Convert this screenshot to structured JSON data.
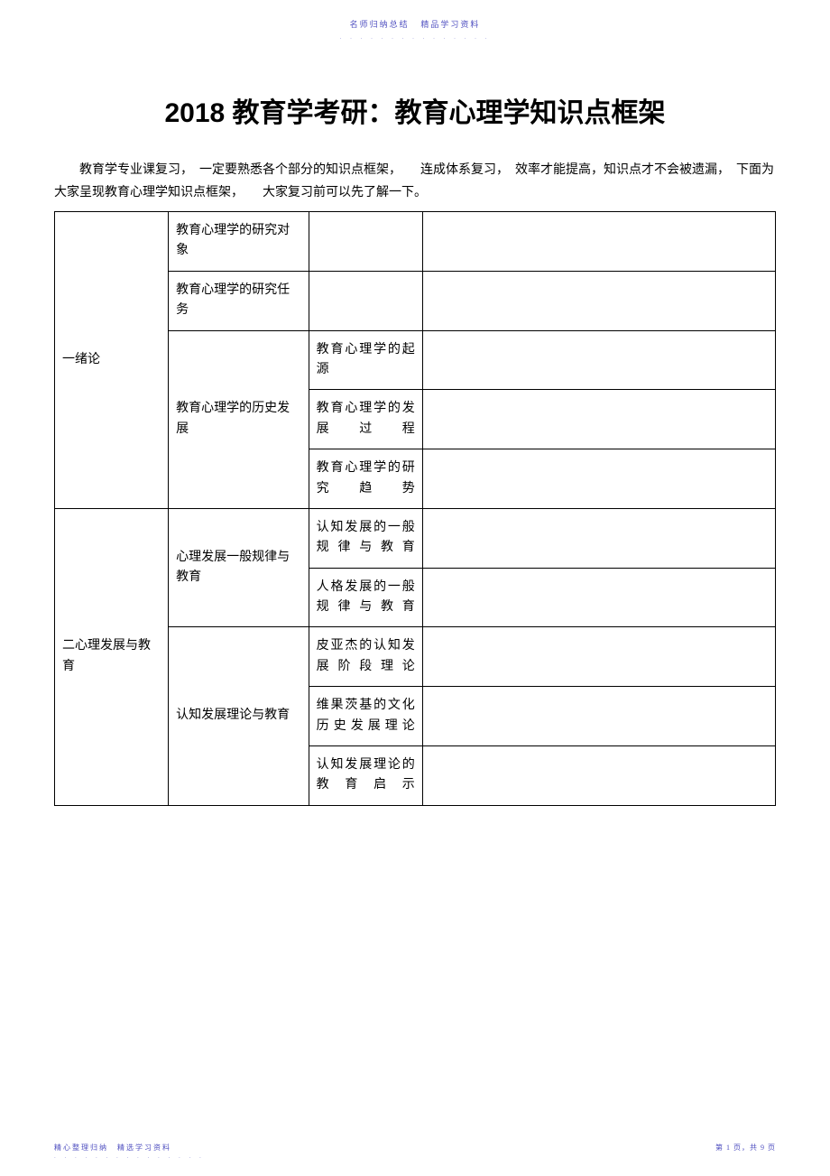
{
  "header": {
    "note_left": "名师归纳总结",
    "note_right": "精品学习资料",
    "dots": ". . . . . . . . . . . . . . ."
  },
  "title": "2018 教育学考研：教育心理学知识点框架",
  "intro": "教育学专业课复习，　一定要熟悉各个部分的知识点框架，　　连成体系复习，　效率才能提高，知识点才不会被遗漏，　下面为大家呈现教育心理学知识点框架，　　大家复习前可以先了解一下。",
  "sections": [
    {
      "col1": "一绪论",
      "rows": [
        {
          "col2": "教育心理学的研究对象",
          "subs": [
            {
              "col3": "",
              "col4": ""
            }
          ]
        },
        {
          "col2": "教育心理学的研究任务",
          "subs": [
            {
              "col3": "",
              "col4": ""
            }
          ]
        },
        {
          "col2": "教育心理学的历史发展",
          "subs": [
            {
              "col3": "教育心理学的起源",
              "col4": ""
            },
            {
              "col3": "教育心理学的发展过程",
              "col4": ""
            },
            {
              "col3": "教育心理学的研究趋势",
              "col4": ""
            }
          ]
        }
      ]
    },
    {
      "col1": "二心理发展与教育",
      "rows": [
        {
          "col2": "心理发展一般规律与教育",
          "subs": [
            {
              "col3": "认知发展的一般规律与教育",
              "col4": ""
            },
            {
              "col3": "人格发展的一般规律与教育",
              "col4": ""
            }
          ]
        },
        {
          "col2": "认知发展理论与教育",
          "subs": [
            {
              "col3": "皮亚杰的认知发展阶段理论",
              "col4": ""
            },
            {
              "col3": "维果茨基的文化历史发展理论",
              "col4": ""
            },
            {
              "col3": "认知发展理论的教育启示",
              "col4": ""
            }
          ]
        }
      ]
    }
  ],
  "footer": {
    "left_top": "精心整理归纳　精选学习资料",
    "left_dots": ". . . . . . . . . . . . . . .",
    "right": "第 1 页，共 9 页"
  }
}
